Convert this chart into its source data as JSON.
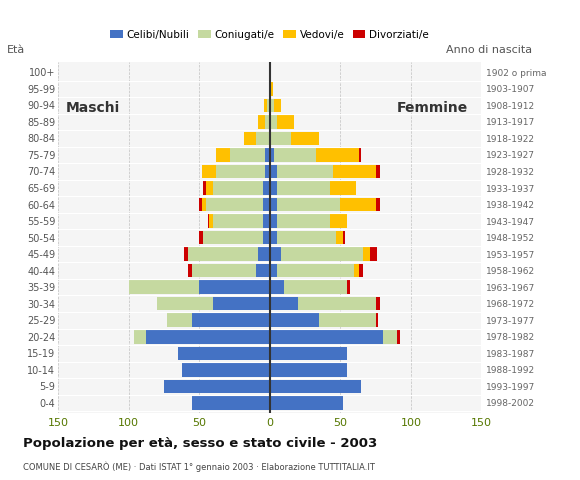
{
  "age_groups": [
    "0-4",
    "5-9",
    "10-14",
    "15-19",
    "20-24",
    "25-29",
    "30-34",
    "35-39",
    "40-44",
    "45-49",
    "50-54",
    "55-59",
    "60-64",
    "65-69",
    "70-74",
    "75-79",
    "80-84",
    "85-89",
    "90-94",
    "95-99",
    "100+"
  ],
  "birth_years": [
    "1998-2002",
    "1993-1997",
    "1988-1992",
    "1983-1987",
    "1978-1982",
    "1973-1977",
    "1968-1972",
    "1963-1967",
    "1958-1962",
    "1953-1957",
    "1948-1952",
    "1943-1947",
    "1938-1942",
    "1933-1937",
    "1928-1932",
    "1923-1927",
    "1918-1922",
    "1913-1917",
    "1908-1912",
    "1903-1907",
    "1902 o prima"
  ],
  "males_celibe": [
    55,
    75,
    62,
    65,
    88,
    55,
    40,
    50,
    10,
    8,
    5,
    5,
    5,
    5,
    3,
    3,
    0,
    0,
    0,
    0,
    0
  ],
  "males_coniugato": [
    0,
    0,
    0,
    0,
    8,
    18,
    40,
    50,
    45,
    50,
    42,
    35,
    40,
    35,
    35,
    25,
    10,
    3,
    2,
    0,
    0
  ],
  "males_vedovo": [
    0,
    0,
    0,
    0,
    0,
    0,
    0,
    0,
    0,
    0,
    0,
    3,
    3,
    5,
    10,
    10,
    8,
    5,
    2,
    0,
    0
  ],
  "males_divorziato": [
    0,
    0,
    0,
    0,
    0,
    0,
    0,
    0,
    3,
    3,
    3,
    1,
    2,
    2,
    0,
    0,
    0,
    0,
    0,
    0,
    0
  ],
  "females_nubile": [
    52,
    65,
    55,
    55,
    80,
    35,
    20,
    10,
    5,
    8,
    5,
    5,
    5,
    5,
    5,
    3,
    0,
    0,
    0,
    0,
    0
  ],
  "females_coniugata": [
    0,
    0,
    0,
    0,
    10,
    40,
    55,
    45,
    55,
    58,
    42,
    38,
    45,
    38,
    40,
    30,
    15,
    5,
    3,
    0,
    0
  ],
  "females_vedova": [
    0,
    0,
    0,
    0,
    0,
    0,
    0,
    0,
    3,
    5,
    5,
    12,
    25,
    18,
    30,
    30,
    20,
    12,
    5,
    2,
    0
  ],
  "females_divorziata": [
    0,
    0,
    0,
    0,
    2,
    2,
    3,
    2,
    3,
    5,
    1,
    0,
    3,
    0,
    3,
    2,
    0,
    0,
    0,
    0,
    0
  ],
  "color_celibe": "#4472c4",
  "color_coniugato": "#c5d9a0",
  "color_vedovo": "#ffc000",
  "color_divorziato": "#cc0000",
  "title": "Popolazione per età, sesso e stato civile - 2003",
  "subtitle": "COMUNE DI CESARÒ (ME) · Dati ISTAT 1° gennaio 2003 · Elaborazione TUTTITALIA.IT",
  "label_eta": "Età",
  "label_anno": "Anno di nascita",
  "label_maschi": "Maschi",
  "label_femmine": "Femmine",
  "legend_celibe": "Celibi/Nubili",
  "legend_coniugato": "Coniugati/e",
  "legend_vedovo": "Vedovi/e",
  "legend_divorziato": "Divorziati/e",
  "xlim": 150,
  "bg_color": "#f5f5f5"
}
